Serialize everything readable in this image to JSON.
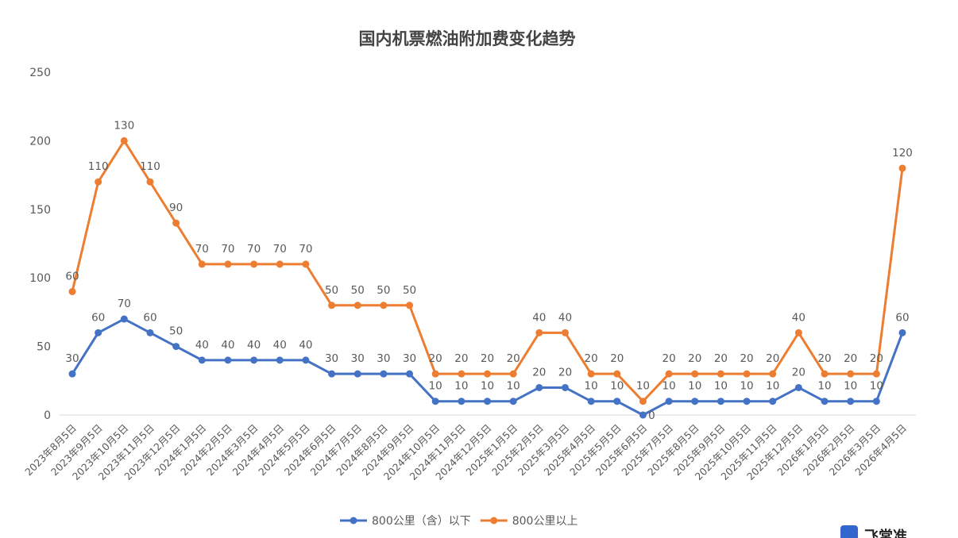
{
  "chart_data": {
    "type": "line",
    "title": "国内机票燃油附加费变化趋势",
    "categories": [
      "2023年8月5日",
      "2023年9月5日",
      "2023年10月5日",
      "2023年11月5日",
      "2023年12月5日",
      "2024年1月5日",
      "2024年2月5日",
      "2024年3月5日",
      "2024年4月5日",
      "2024年5月5日",
      "2024年6月5日",
      "2024年7月5日",
      "2024年8月5日",
      "2024年9月5日",
      "2024年10月5日",
      "2024年11月5日",
      "2024年12月5日",
      "2025年1月5日",
      "2025年2月5日",
      "2025年3月5日",
      "2025年4月5日",
      "2025年5月5日",
      "2025年6月5日",
      "2025年7月5日",
      "2025年8月5日",
      "2025年9月5日",
      "2025年10月5日",
      "2025年11月5日",
      "2025年12月5日",
      "2026年1月5日",
      "2026年2月5日",
      "2026年3月5日",
      "2026年4月5日"
    ],
    "ylim": [
      0,
      250
    ],
    "yticks": [
      0,
      50,
      100,
      150,
      200,
      250
    ],
    "grid": false,
    "legend_position": "bottom",
    "series": [
      {
        "name": "800公里（含）以下",
        "color": "#4472C4",
        "values": [
          30,
          60,
          70,
          60,
          50,
          40,
          40,
          40,
          40,
          40,
          30,
          30,
          30,
          30,
          10,
          10,
          10,
          10,
          20,
          20,
          10,
          10,
          0,
          10,
          10,
          10,
          10,
          10,
          20,
          10,
          10,
          10,
          60
        ]
      },
      {
        "name": "800公里以上",
        "color": "#ED7D31",
        "values": [
          90,
          170,
          200,
          170,
          140,
          110,
          110,
          110,
          110,
          110,
          80,
          80,
          80,
          80,
          30,
          30,
          30,
          30,
          60,
          60,
          30,
          30,
          10,
          30,
          30,
          30,
          30,
          30,
          60,
          30,
          30,
          30,
          180
        ],
        "labels": [
          60,
          110,
          130,
          110,
          90,
          70,
          70,
          70,
          70,
          70,
          50,
          50,
          50,
          50,
          20,
          20,
          20,
          20,
          40,
          40,
          20,
          20,
          10,
          20,
          20,
          20,
          20,
          20,
          40,
          20,
          20,
          20,
          120
        ]
      }
    ]
  },
  "watermark": {
    "text": "飞常准"
  }
}
